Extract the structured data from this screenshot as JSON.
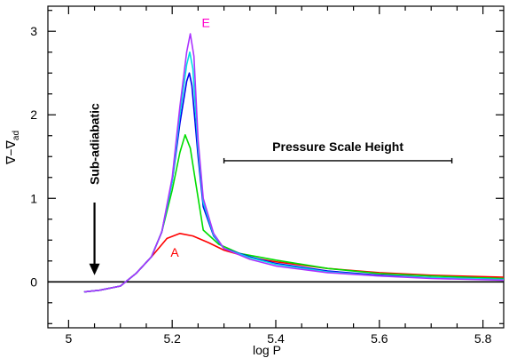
{
  "chart_data": {
    "type": "line",
    "title": "",
    "xlabel": "log P",
    "ylabel_main": "∇−∇",
    "ylabel_sub": "ad",
    "xlim": [
      4.96,
      5.84
    ],
    "ylim": [
      -0.55,
      3.3
    ],
    "x_ticks": [
      {
        "value": 5.0,
        "label": "5"
      },
      {
        "value": 5.2,
        "label": "5.2"
      },
      {
        "value": 5.4,
        "label": "5.4"
      },
      {
        "value": 5.6,
        "label": "5.6"
      },
      {
        "value": 5.8,
        "label": "5.8"
      }
    ],
    "y_ticks": [
      {
        "value": 0,
        "label": "0"
      },
      {
        "value": 1,
        "label": "1"
      },
      {
        "value": 2,
        "label": "2"
      },
      {
        "value": 3,
        "label": "3"
      }
    ],
    "zero_line": 0,
    "series": [
      {
        "name": "A",
        "color": "#ff0000",
        "label_at": [
          5.205,
          0.3
        ],
        "points": [
          [
            5.03,
            -0.12
          ],
          [
            5.06,
            -0.1
          ],
          [
            5.1,
            -0.05
          ],
          [
            5.13,
            0.1
          ],
          [
            5.16,
            0.3
          ],
          [
            5.19,
            0.52
          ],
          [
            5.215,
            0.58
          ],
          [
            5.24,
            0.55
          ],
          [
            5.27,
            0.47
          ],
          [
            5.3,
            0.38
          ],
          [
            5.35,
            0.29
          ],
          [
            5.4,
            0.24
          ],
          [
            5.5,
            0.16
          ],
          [
            5.6,
            0.11
          ],
          [
            5.7,
            0.08
          ],
          [
            5.84,
            0.055
          ]
        ]
      },
      {
        "name": "",
        "color": "#00dd00",
        "points": [
          [
            5.03,
            -0.12
          ],
          [
            5.06,
            -0.1
          ],
          [
            5.1,
            -0.05
          ],
          [
            5.13,
            0.1
          ],
          [
            5.16,
            0.3
          ],
          [
            5.18,
            0.6
          ],
          [
            5.2,
            1.1
          ],
          [
            5.215,
            1.55
          ],
          [
            5.225,
            1.76
          ],
          [
            5.235,
            1.6
          ],
          [
            5.245,
            1.2
          ],
          [
            5.26,
            0.62
          ],
          [
            5.29,
            0.45
          ],
          [
            5.33,
            0.34
          ],
          [
            5.4,
            0.26
          ],
          [
            5.5,
            0.16
          ],
          [
            5.6,
            0.1
          ],
          [
            5.7,
            0.07
          ],
          [
            5.84,
            0.04
          ]
        ]
      },
      {
        "name": "",
        "color": "#0000ee",
        "points": [
          [
            5.03,
            -0.12
          ],
          [
            5.06,
            -0.1
          ],
          [
            5.1,
            -0.05
          ],
          [
            5.13,
            0.1
          ],
          [
            5.16,
            0.3
          ],
          [
            5.18,
            0.6
          ],
          [
            5.2,
            1.2
          ],
          [
            5.215,
            1.9
          ],
          [
            5.228,
            2.4
          ],
          [
            5.233,
            2.5
          ],
          [
            5.238,
            2.35
          ],
          [
            5.25,
            1.5
          ],
          [
            5.26,
            0.9
          ],
          [
            5.28,
            0.55
          ],
          [
            5.3,
            0.4
          ],
          [
            5.35,
            0.3
          ],
          [
            5.4,
            0.22
          ],
          [
            5.5,
            0.13
          ],
          [
            5.6,
            0.08
          ],
          [
            5.7,
            0.05
          ],
          [
            5.84,
            0.03
          ]
        ]
      },
      {
        "name": "",
        "color": "#00e0e0",
        "points": [
          [
            5.03,
            -0.12
          ],
          [
            5.06,
            -0.1
          ],
          [
            5.1,
            -0.05
          ],
          [
            5.13,
            0.1
          ],
          [
            5.16,
            0.3
          ],
          [
            5.18,
            0.6
          ],
          [
            5.2,
            1.2
          ],
          [
            5.215,
            2.0
          ],
          [
            5.228,
            2.6
          ],
          [
            5.234,
            2.75
          ],
          [
            5.24,
            2.55
          ],
          [
            5.25,
            1.6
          ],
          [
            5.26,
            0.95
          ],
          [
            5.28,
            0.56
          ],
          [
            5.3,
            0.4
          ],
          [
            5.35,
            0.29
          ],
          [
            5.4,
            0.21
          ],
          [
            5.5,
            0.12
          ],
          [
            5.6,
            0.07
          ],
          [
            5.7,
            0.05
          ],
          [
            5.84,
            0.03
          ]
        ]
      },
      {
        "name": "",
        "color": "#aa33ff",
        "points": [
          [
            5.03,
            -0.12
          ],
          [
            5.06,
            -0.1
          ],
          [
            5.1,
            -0.05
          ],
          [
            5.13,
            0.1
          ],
          [
            5.16,
            0.3
          ],
          [
            5.18,
            0.6
          ],
          [
            5.2,
            1.25
          ],
          [
            5.215,
            2.1
          ],
          [
            5.228,
            2.75
          ],
          [
            5.235,
            2.97
          ],
          [
            5.242,
            2.7
          ],
          [
            5.25,
            1.7
          ],
          [
            5.26,
            1.0
          ],
          [
            5.28,
            0.58
          ],
          [
            5.3,
            0.4
          ],
          [
            5.35,
            0.27
          ],
          [
            5.4,
            0.19
          ],
          [
            5.5,
            0.11
          ],
          [
            5.6,
            0.07
          ],
          [
            5.7,
            0.04
          ],
          [
            5.84,
            0.02
          ]
        ]
      }
    ],
    "top_label": {
      "text": "E",
      "color": "#ff00cc",
      "at": [
        5.265,
        3.05
      ]
    },
    "annotations": {
      "sub_adiabatic": "Sub-adiabatic",
      "pressure_scale_height": "Pressure Scale Height",
      "psh_range": [
        5.3,
        5.74
      ],
      "psh_y": 1.45,
      "arrow_x": 5.05,
      "arrow_from": 0.95,
      "arrow_to": 0.08
    },
    "grid": false,
    "legend": "none"
  }
}
